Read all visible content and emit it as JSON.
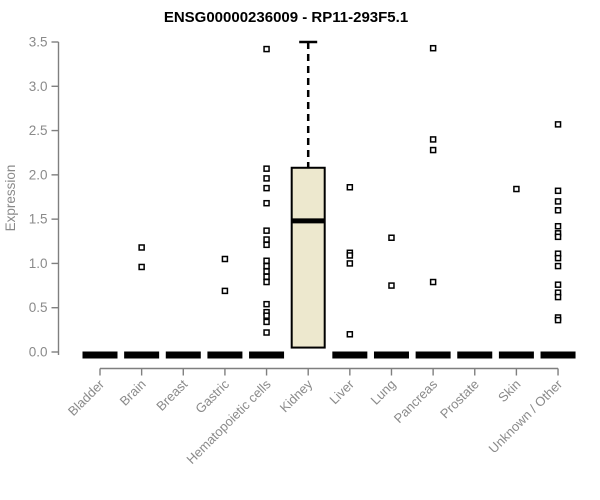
{
  "chart_data": {
    "type": "boxplot",
    "title": "ENSG00000236009 - RP11-293F5.1",
    "ylabel": "Expression",
    "xlabel": "",
    "ylim": [
      0,
      3.5
    ],
    "ytick_labels": [
      "0.0",
      "0.5",
      "1.0",
      "1.5",
      "2.0",
      "2.5",
      "3.0",
      "3.5"
    ],
    "grid": "off",
    "legend": "none",
    "categories": [
      "Bladder",
      "Brain",
      "Breast",
      "Gastric",
      "Hematopoietic cells",
      "Kidney",
      "Liver",
      "Lung",
      "Pancreas",
      "Prostate",
      "Skin",
      "Unknown / Other"
    ],
    "groups": [
      {
        "name": "Bladder",
        "flat_at_zero": true,
        "box": null,
        "points": []
      },
      {
        "name": "Brain",
        "flat_at_zero": true,
        "box": null,
        "points": [
          1.18,
          0.96
        ]
      },
      {
        "name": "Breast",
        "flat_at_zero": true,
        "box": null,
        "points": []
      },
      {
        "name": "Gastric",
        "flat_at_zero": true,
        "box": null,
        "points": [
          1.05,
          0.69
        ]
      },
      {
        "name": "Hematopoietic cells",
        "flat_at_zero": true,
        "box": null,
        "points": [
          3.42,
          2.07,
          1.96,
          1.85,
          1.68,
          1.37,
          1.27,
          1.21,
          1.03,
          0.97,
          0.91,
          0.85,
          0.79,
          0.54,
          0.45,
          0.41,
          0.34,
          0.22
        ]
      },
      {
        "name": "Kidney",
        "flat_at_zero": false,
        "box": {
          "q1": 0.05,
          "median": 1.48,
          "q3": 2.08,
          "whisker_high": 3.5
        },
        "points": []
      },
      {
        "name": "Liver",
        "flat_at_zero": true,
        "box": null,
        "points": [
          1.86,
          1.12,
          1.09,
          1.0,
          0.2
        ]
      },
      {
        "name": "Lung",
        "flat_at_zero": true,
        "box": null,
        "points": [
          1.29,
          0.75
        ]
      },
      {
        "name": "Pancreas",
        "flat_at_zero": true,
        "box": null,
        "points": [
          3.43,
          2.4,
          2.28,
          0.79
        ]
      },
      {
        "name": "Prostate",
        "flat_at_zero": true,
        "box": null,
        "points": []
      },
      {
        "name": "Skin",
        "flat_at_zero": true,
        "box": null,
        "points": [
          1.84
        ]
      },
      {
        "name": "Unknown / Other",
        "flat_at_zero": true,
        "box": null,
        "points": [
          2.57,
          1.82,
          1.7,
          1.6,
          1.42,
          1.34,
          1.3,
          1.11,
          1.06,
          0.97,
          0.76,
          0.67,
          0.62,
          0.39,
          0.36
        ]
      }
    ],
    "colors": {
      "box_fill": "#EDE8CE",
      "box_border": "#000000",
      "median": "#000000",
      "zero_bar": "#000000",
      "point_stroke": "#000000",
      "axis": "#7F7F7F",
      "tick_text": "#8A8A8A",
      "title_text": "#000000"
    }
  }
}
